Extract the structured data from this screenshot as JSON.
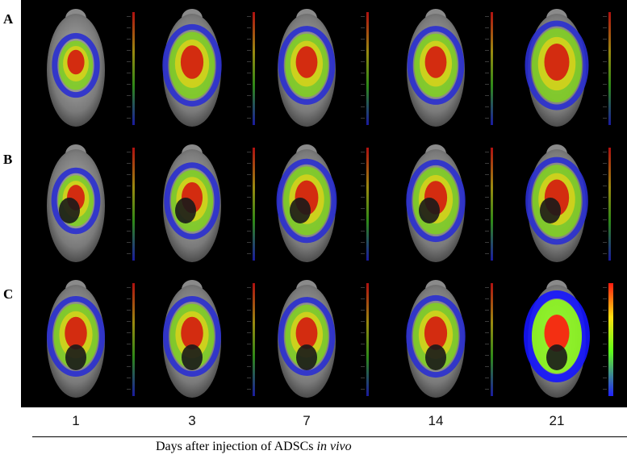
{
  "row_labels": [
    "A",
    "B",
    "C"
  ],
  "days": [
    "1",
    "3",
    "7",
    "14",
    "21"
  ],
  "caption": {
    "text": "Days after injection of ADSCs ",
    "italic": "in vivo"
  },
  "colors": {
    "background": "#000000",
    "blue": "#2a2fd0",
    "green": "#7fd21c",
    "yellow": "#d9d21a",
    "red": "#d41a10",
    "bright_red": "#ff1a10",
    "bright_green": "#8cff18",
    "bright_blue": "#1414ff"
  },
  "images": [
    {
      "row": "A",
      "day": "1",
      "intensity": 0.3
    },
    {
      "row": "A",
      "day": "3",
      "intensity": 0.8
    },
    {
      "row": "A",
      "day": "7",
      "intensity": 0.7
    },
    {
      "row": "A",
      "day": "14",
      "intensity": 0.7
    },
    {
      "row": "A",
      "day": "21",
      "intensity": 1.0
    },
    {
      "row": "B",
      "day": "1",
      "intensity": 0.35
    },
    {
      "row": "B",
      "day": "3",
      "intensity": 0.65
    },
    {
      "row": "B",
      "day": "7",
      "intensity": 0.85
    },
    {
      "row": "B",
      "day": "14",
      "intensity": 0.8
    },
    {
      "row": "B",
      "day": "21",
      "intensity": 0.95
    },
    {
      "row": "C",
      "day": "1",
      "intensity": 0.75
    },
    {
      "row": "C",
      "day": "3",
      "intensity": 0.75
    },
    {
      "row": "C",
      "day": "7",
      "intensity": 0.7
    },
    {
      "row": "C",
      "day": "14",
      "intensity": 0.8
    },
    {
      "row": "C",
      "day": "21",
      "intensity": 1.0
    }
  ]
}
